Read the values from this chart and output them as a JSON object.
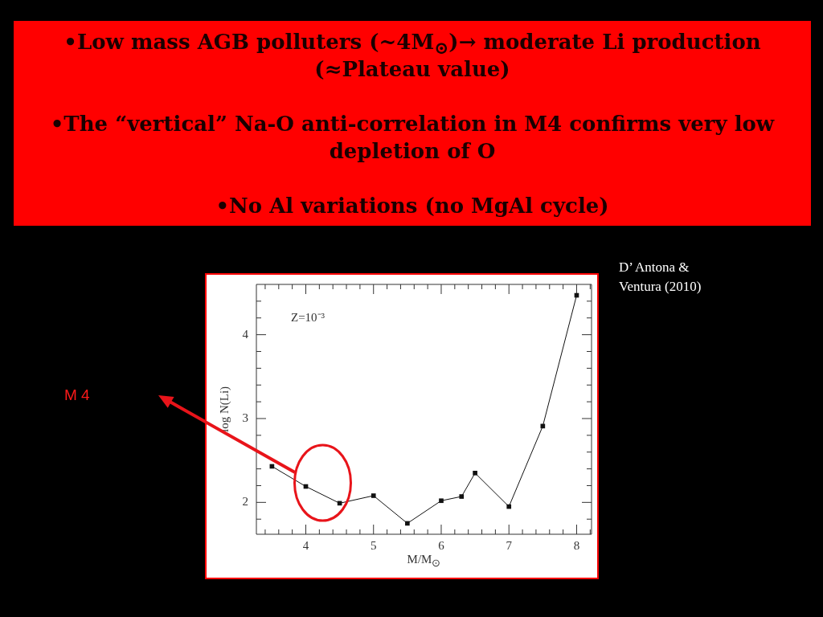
{
  "chart_data": {
    "type": "line",
    "xlabel": "M/M$_{⊙}$",
    "ylabel": "log N(Li)",
    "annotations": [
      "•Low mass AGB polluters (~4M$_{⊙}$)→ moderate Li production (≈Plateau value)",
      "•The “vertical” Na-O anti-correlation in M4 confirms very low depletion of O",
      "•No Al variations (no MgAl cycle)",
      "D’ Antona & Ventura (2010)",
      "Z=10⁻³",
      "M 4"
    ],
    "x": [
      3.5,
      4,
      4.5,
      5,
      5.5,
      6,
      6.3,
      6.5,
      7,
      7.5,
      8
    ],
    "values": [
      2.43,
      2.19,
      1.99,
      2.08,
      1.75,
      2.02,
      2.07,
      2.35,
      1.95,
      2.91,
      4.47
    ],
    "color": "#111111",
    "marker": "square",
    "line_style": "solid",
    "xlim": [
      3.27,
      8.22
    ],
    "ylim": [
      1.62,
      4.6
    ],
    "xticks": [
      {
        "value": 3.4,
        "label": null
      },
      {
        "value": 3.6,
        "label": null
      },
      {
        "value": 3.8,
        "label": null
      },
      4,
      {
        "value": 4.2,
        "label": null
      },
      {
        "value": 4.4,
        "label": null
      },
      {
        "value": 4.6,
        "label": null
      },
      {
        "value": 4.8,
        "label": null
      },
      5,
      {
        "value": 5.2,
        "label": null
      },
      {
        "value": 5.4,
        "label": null
      },
      {
        "value": 5.6,
        "label": null
      },
      {
        "value": 5.8,
        "label": null
      },
      6,
      {
        "value": 6.2,
        "label": null
      },
      {
        "value": 6.4,
        "label": null
      },
      {
        "value": 6.6,
        "label": null
      },
      {
        "value": 6.8,
        "label": null
      },
      7,
      {
        "value": 7.2,
        "label": null
      },
      {
        "value": 7.4,
        "label": null
      },
      {
        "value": 7.6,
        "label": null
      },
      {
        "value": 7.8,
        "label": null
      },
      8,
      {
        "value": 8.2,
        "label": null
      }
    ],
    "yticks": [
      {
        "value": 1.8,
        "label": null
      },
      2,
      {
        "value": 2.2,
        "label": null
      },
      {
        "value": 2.4,
        "label": null
      },
      {
        "value": 2.6,
        "label": null
      },
      {
        "value": 2.8,
        "label": null
      },
      3,
      {
        "value": 3.2,
        "label": null
      },
      {
        "value": 3.4,
        "label": null
      },
      {
        "value": 3.6,
        "label": null
      },
      {
        "value": 3.8,
        "label": null
      },
      4,
      {
        "value": 4.2,
        "label": null
      },
      {
        "value": 4.4,
        "label": null
      }
    ]
  }
}
